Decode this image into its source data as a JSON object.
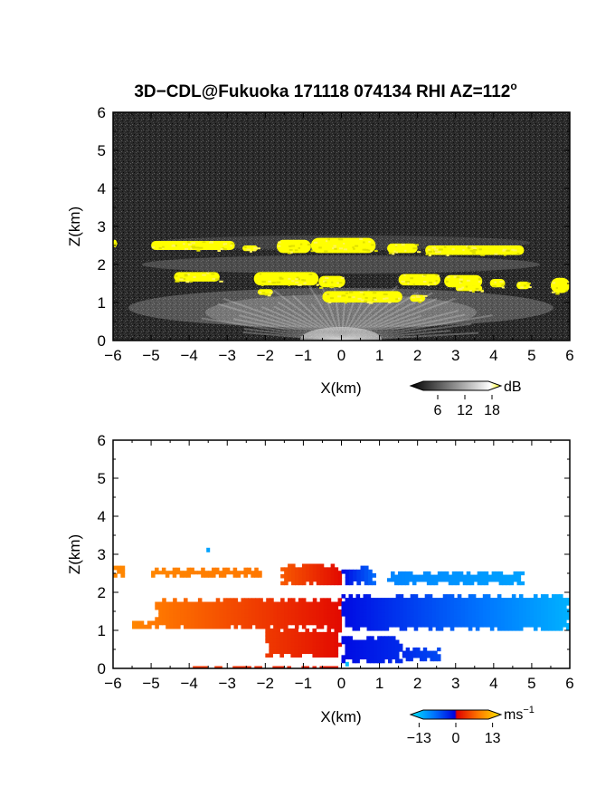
{
  "title": "3D−CDL@Fukuoka 171118 074134 RHI AZ=112",
  "title_superscript": "o",
  "chart_data": [
    {
      "type": "heatmap",
      "panel": "reflectivity",
      "xlabel": "X(km)",
      "ylabel": "Z(km)",
      "xlim": [
        -6,
        6
      ],
      "ylim": [
        0,
        6
      ],
      "xticks": [
        "−6",
        "−5",
        "−4",
        "−3",
        "−2",
        "−1",
        "0",
        "1",
        "2",
        "3",
        "4",
        "5",
        "6"
      ],
      "yticks": [
        "0",
        "1",
        "2",
        "3",
        "4",
        "5",
        "6"
      ],
      "colorbar": {
        "unit": "dB",
        "ticks": [
          "6",
          "12",
          "18"
        ],
        "range": [
          0,
          20
        ],
        "colors": [
          "#000000",
          "#ffffff",
          "#ffff00"
        ]
      },
      "background_color": "#2a2a2a",
      "features": [
        {
          "kind": "layer",
          "value_db": 19,
          "x": [
            -6.0,
            -5.9
          ],
          "z": [
            2.45,
            2.65
          ]
        },
        {
          "kind": "layer",
          "value_db": 19,
          "x": [
            -5.0,
            -2.8
          ],
          "z": [
            2.38,
            2.62
          ]
        },
        {
          "kind": "layer",
          "value_db": 19,
          "x": [
            -2.6,
            -2.2
          ],
          "z": [
            2.35,
            2.5
          ]
        },
        {
          "kind": "layer",
          "value_db": 19,
          "x": [
            -1.7,
            -0.8
          ],
          "z": [
            2.3,
            2.65
          ]
        },
        {
          "kind": "layer",
          "value_db": 19,
          "x": [
            -0.8,
            0.9
          ],
          "z": [
            2.3,
            2.7
          ]
        },
        {
          "kind": "layer",
          "value_db": 19,
          "x": [
            1.2,
            2.0
          ],
          "z": [
            2.3,
            2.55
          ]
        },
        {
          "kind": "layer",
          "value_db": 19,
          "x": [
            2.2,
            4.8
          ],
          "z": [
            2.25,
            2.5
          ]
        },
        {
          "kind": "layer",
          "value_db": 19,
          "x": [
            -4.4,
            -3.2
          ],
          "z": [
            1.55,
            1.8
          ]
        },
        {
          "kind": "layer",
          "value_db": 19,
          "x": [
            -2.3,
            -0.6
          ],
          "z": [
            1.45,
            1.8
          ]
        },
        {
          "kind": "layer",
          "value_db": 19,
          "x": [
            -0.6,
            0.1
          ],
          "z": [
            1.4,
            1.7
          ]
        },
        {
          "kind": "layer",
          "value_db": 19,
          "x": [
            1.5,
            2.6
          ],
          "z": [
            1.45,
            1.75
          ]
        },
        {
          "kind": "layer",
          "value_db": 19,
          "x": [
            2.7,
            3.7
          ],
          "z": [
            1.4,
            1.72
          ]
        },
        {
          "kind": "layer",
          "value_db": 19,
          "x": [
            3.9,
            4.3
          ],
          "z": [
            1.4,
            1.62
          ]
        },
        {
          "kind": "layer",
          "value_db": 19,
          "x": [
            4.6,
            4.95
          ],
          "z": [
            1.35,
            1.55
          ]
        },
        {
          "kind": "layer",
          "value_db": 19,
          "x": [
            5.5,
            6.0
          ],
          "z": [
            1.25,
            1.65
          ]
        },
        {
          "kind": "layer",
          "value_db": 19,
          "x": [
            -0.5,
            1.6
          ],
          "z": [
            1.0,
            1.3
          ]
        },
        {
          "kind": "layer",
          "value_db": 19,
          "x": [
            1.8,
            2.2
          ],
          "z": [
            1.02,
            1.2
          ]
        },
        {
          "kind": "layer",
          "value_db": 19,
          "x": [
            3.0,
            3.7
          ],
          "z": [
            1.3,
            1.45
          ]
        },
        {
          "kind": "layer",
          "value_db": 19,
          "x": [
            -2.2,
            -1.8
          ],
          "z": [
            1.2,
            1.35
          ]
        }
      ]
    },
    {
      "type": "heatmap",
      "panel": "doppler velocity",
      "xlabel": "X(km)",
      "ylabel": "Z(km)",
      "xlim": [
        -6,
        6
      ],
      "ylim": [
        0,
        6
      ],
      "xticks": [
        "−6",
        "−5",
        "−4",
        "−3",
        "−2",
        "−1",
        "0",
        "1",
        "2",
        "3",
        "4",
        "5",
        "6"
      ],
      "yticks": [
        "0",
        "1",
        "2",
        "3",
        "4",
        "5",
        "6"
      ],
      "colorbar": {
        "unit": "ms",
        "unit_superscript": "−1",
        "ticks": [
          "−13",
          "0",
          "13"
        ],
        "range": [
          -16,
          16
        ],
        "colors": [
          "#00e8ff",
          "#0078ff",
          "#0000e0",
          "#e00000",
          "#ff7800",
          "#ffe600"
        ]
      },
      "features": [
        {
          "kind": "layer",
          "velocity_ms": [
            9,
            9
          ],
          "x": [
            -6.0,
            -5.7
          ],
          "z": [
            2.4,
            2.7
          ]
        },
        {
          "kind": "layer",
          "velocity_ms": [
            9,
            8
          ],
          "x": [
            -5.0,
            -2.1
          ],
          "z": [
            2.4,
            2.65
          ]
        },
        {
          "kind": "layer",
          "velocity_ms": [
            6,
            1
          ],
          "x": [
            -1.6,
            0.0
          ],
          "z": [
            2.2,
            2.75
          ]
        },
        {
          "kind": "layer",
          "velocity_ms": [
            -1,
            -7
          ],
          "x": [
            0.0,
            0.9
          ],
          "z": [
            2.2,
            2.7
          ]
        },
        {
          "kind": "layer",
          "velocity_ms": [
            -9,
            -11
          ],
          "x": [
            1.2,
            4.8
          ],
          "z": [
            2.2,
            2.55
          ]
        },
        {
          "kind": "layer",
          "velocity_ms": [
            8,
            1
          ],
          "x": [
            -4.9,
            0.0
          ],
          "z": [
            1.05,
            1.85
          ]
        },
        {
          "kind": "layer",
          "velocity_ms": [
            9,
            8
          ],
          "x": [
            -5.5,
            -4.9
          ],
          "z": [
            1.05,
            1.25
          ]
        },
        {
          "kind": "layer",
          "velocity_ms": [
            -1,
            -12
          ],
          "x": [
            0.0,
            6.0
          ],
          "z": [
            1.0,
            1.95
          ]
        },
        {
          "kind": "layer",
          "velocity_ms": [
            4,
            1
          ],
          "x": [
            -2.0,
            0.0
          ],
          "z": [
            0.3,
            1.05
          ]
        },
        {
          "kind": "layer",
          "velocity_ms": [
            -1,
            -3
          ],
          "x": [
            0.0,
            1.6
          ],
          "z": [
            0.15,
            0.85
          ]
        },
        {
          "kind": "layer",
          "velocity_ms": [
            -3,
            -5
          ],
          "x": [
            1.6,
            2.6
          ],
          "z": [
            0.2,
            0.55
          ]
        },
        {
          "kind": "layer",
          "velocity_ms": [
            4,
            2
          ],
          "x": [
            -4.0,
            0.0
          ],
          "z": [
            0.0,
            0.06
          ]
        },
        {
          "kind": "point",
          "velocity_ms": -11,
          "x": -3.5,
          "z": 3.1
        },
        {
          "kind": "point",
          "velocity_ms": -13,
          "x": 0.15,
          "z": 0.1
        }
      ]
    }
  ]
}
